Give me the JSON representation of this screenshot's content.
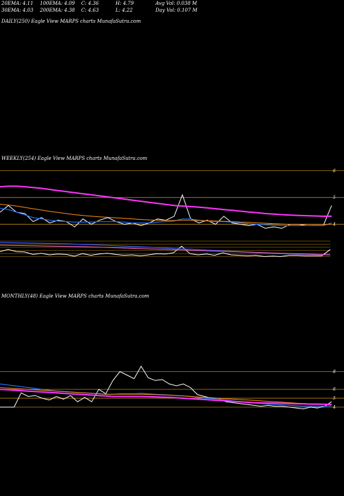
{
  "header": {
    "row1": {
      "ema20": "20EMA: 4.11",
      "ema100": "100EMA: 4.09",
      "close": "C: 4.36",
      "high": "H: 4.79",
      "avg_vol": "Avg Vol: 0.038 M"
    },
    "row2": {
      "ema30": "30EMA: 4.03",
      "ema200": "200EMA: 4.38",
      "change": "C: 4.63",
      "low": "L: 4.22",
      "day_vol": "Day Vol: 0.107 M"
    }
  },
  "panels": {
    "daily": {
      "caption": "DAILY(250) Eagle  View  MARPS charts MunafaSutra.com"
    },
    "weekly": {
      "caption": "WEEKLY(254) Eagle  View  MARPS charts MunafaSutra.com"
    },
    "monthly": {
      "caption": "MONTHLY(48) Eagle  View  MARPS charts MunafaSutra.com"
    }
  },
  "colors": {
    "price": "#ffffff",
    "ema_fast": "#1e6fff",
    "ema_slow": "#ff8c1a",
    "ema_long": "#ff33ff",
    "level": "#b8860b",
    "volume": "#3355ff"
  },
  "chart_data": [
    {
      "type": "line",
      "title": "WEEKLY(254) Eagle  View  MARPS charts MunafaSutra.com",
      "y_tick_labels": [
        "6",
        "5",
        "4"
      ],
      "ylim": [
        3.5,
        6.2
      ],
      "price_levels": [
        6,
        5,
        4
      ],
      "x": [
        0,
        1,
        2,
        3,
        4,
        5,
        6,
        7,
        8,
        9,
        10,
        11,
        12,
        13,
        14,
        15,
        16,
        17,
        18,
        19,
        20,
        21,
        22,
        23,
        24,
        25,
        26,
        27,
        28,
        29,
        30,
        31,
        32,
        33,
        34,
        35,
        36,
        37,
        38,
        39,
        40
      ],
      "series": [
        {
          "role": "price",
          "values": [
            4.45,
            4.7,
            4.45,
            4.4,
            4.1,
            4.25,
            4.05,
            4.15,
            4.1,
            3.9,
            4.2,
            4.0,
            4.15,
            4.25,
            4.1,
            4.0,
            4.05,
            3.95,
            4.05,
            4.2,
            4.15,
            4.3,
            5.1,
            4.2,
            4.05,
            4.15,
            4.0,
            4.3,
            4.05,
            4.0,
            3.95,
            4.0,
            3.85,
            3.9,
            3.85,
            4.0,
            4.0,
            3.95,
            3.95,
            3.95,
            4.7
          ]
        },
        {
          "role": "ema_fast",
          "values": [
            4.6,
            4.55,
            4.45,
            4.35,
            4.25,
            4.2,
            4.15,
            4.12,
            4.1,
            4.08,
            4.08,
            4.08,
            4.1,
            4.1,
            4.1,
            4.08,
            4.05,
            4.05,
            4.05,
            4.08,
            4.1,
            4.12,
            4.2,
            4.2,
            4.15,
            4.12,
            4.1,
            4.1,
            4.08,
            4.05,
            4.02,
            4.0,
            3.98,
            3.96,
            3.95,
            3.95,
            3.95,
            3.95,
            3.95,
            3.95,
            4.05
          ]
        },
        {
          "role": "ema_slow",
          "values": [
            4.75,
            4.72,
            4.68,
            4.63,
            4.58,
            4.53,
            4.48,
            4.44,
            4.4,
            4.36,
            4.33,
            4.3,
            4.28,
            4.26,
            4.24,
            4.22,
            4.2,
            4.18,
            4.16,
            4.15,
            4.14,
            4.14,
            4.15,
            4.15,
            4.14,
            4.13,
            4.12,
            4.11,
            4.1,
            4.08,
            4.07,
            4.05,
            4.04,
            4.02,
            4.01,
            4.0,
            4.0,
            4.0,
            3.99,
            3.99,
            4.0
          ]
        },
        {
          "role": "ema_long",
          "values": [
            5.4,
            5.42,
            5.42,
            5.4,
            5.37,
            5.34,
            5.3,
            5.26,
            5.22,
            5.18,
            5.14,
            5.1,
            5.06,
            5.02,
            4.98,
            4.94,
            4.9,
            4.86,
            4.82,
            4.78,
            4.74,
            4.7,
            4.68,
            4.66,
            4.64,
            4.61,
            4.58,
            4.55,
            4.52,
            4.49,
            4.46,
            4.43,
            4.4,
            4.38,
            4.36,
            4.34,
            4.33,
            4.32,
            4.31,
            4.3,
            4.3
          ]
        }
      ]
    },
    {
      "type": "line",
      "title": "MONTHLY(48) Eagle  View  MARPS charts MunafaSutra.com",
      "y_tick_labels": [
        "8",
        "6",
        "5",
        "4"
      ],
      "ylim": [
        3.3,
        9.5
      ],
      "price_levels": [
        8,
        6,
        5,
        4
      ],
      "x": [
        0,
        1,
        2,
        3,
        4,
        5,
        6,
        7,
        8,
        9,
        10,
        11,
        12,
        13,
        14,
        15,
        16,
        17,
        18,
        19,
        20,
        21,
        22,
        23,
        24,
        25,
        26,
        27,
        28,
        29,
        30,
        31,
        32,
        33,
        34,
        35,
        36,
        37,
        38,
        39,
        40,
        41,
        42,
        43,
        44,
        45,
        46,
        47
      ],
      "series": [
        {
          "role": "price",
          "values": [
            4.0,
            4.0,
            4.0,
            5.6,
            5.2,
            5.3,
            5.0,
            4.8,
            5.2,
            4.9,
            5.3,
            4.6,
            5.1,
            4.6,
            6.0,
            5.5,
            7.0,
            8.0,
            7.6,
            7.2,
            8.6,
            7.3,
            7.0,
            7.1,
            6.6,
            6.4,
            6.6,
            6.2,
            5.4,
            5.2,
            5.0,
            5.0,
            4.6,
            4.5,
            4.4,
            4.3,
            4.2,
            4.1,
            4.2,
            4.1,
            4.1,
            4.0,
            3.9,
            3.8,
            4.0,
            3.9,
            4.1,
            4.6
          ]
        },
        {
          "role": "ema_fast",
          "values": [
            6.6,
            6.5,
            6.4,
            6.3,
            6.2,
            6.1,
            6.0,
            5.9,
            5.8,
            5.75,
            5.7,
            5.65,
            5.6,
            5.55,
            5.5,
            5.45,
            5.45,
            5.5,
            5.5,
            5.5,
            5.55,
            5.5,
            5.45,
            5.4,
            5.35,
            5.3,
            5.25,
            5.2,
            5.1,
            5.0,
            4.95,
            4.9,
            4.8,
            4.7,
            4.6,
            4.5,
            4.45,
            4.4,
            4.35,
            4.3,
            4.25,
            4.2,
            4.15,
            4.1,
            4.1,
            4.1,
            4.1,
            4.15
          ]
        },
        {
          "role": "ema_slow",
          "values": [
            6.2,
            6.15,
            6.1,
            6.05,
            6.0,
            5.95,
            5.9,
            5.85,
            5.8,
            5.75,
            5.7,
            5.65,
            5.6,
            5.55,
            5.5,
            5.45,
            5.45,
            5.45,
            5.45,
            5.45,
            5.45,
            5.42,
            5.4,
            5.38,
            5.35,
            5.3,
            5.25,
            5.2,
            5.15,
            5.1,
            5.05,
            5.0,
            4.95,
            4.9,
            4.85,
            4.8,
            4.75,
            4.7,
            4.65,
            4.6,
            4.55,
            4.5,
            4.45,
            4.4,
            4.38,
            4.36,
            4.34,
            4.32
          ]
        },
        {
          "role": "ema_long",
          "values": [
            6.0,
            5.95,
            5.9,
            5.85,
            5.8,
            5.75,
            5.7,
            5.65,
            5.6,
            5.55,
            5.5,
            5.45,
            5.4,
            5.35,
            5.3,
            5.25,
            5.2,
            5.2,
            5.2,
            5.2,
            5.2,
            5.18,
            5.15,
            5.12,
            5.1,
            5.05,
            5.0,
            4.95,
            4.9,
            4.85,
            4.8,
            4.75,
            4.7,
            4.65,
            4.6,
            4.55,
            4.5,
            4.48,
            4.46,
            4.44,
            4.42,
            4.4,
            4.38,
            4.36,
            4.34,
            4.33,
            4.32,
            4.3
          ]
        }
      ]
    }
  ]
}
